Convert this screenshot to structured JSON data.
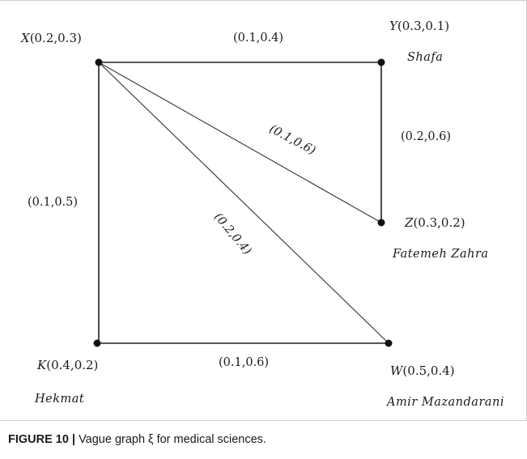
{
  "vertices": [
    {
      "id": "X",
      "name": "X",
      "value": "(0.2,0.3)",
      "place": ""
    },
    {
      "id": "Y",
      "name": "Y",
      "value": "(0.3,0.1)",
      "place": "Shafa"
    },
    {
      "id": "Z",
      "name": "Z",
      "value": "(0.3,0.2)",
      "place": "Fatemeh Zahra"
    },
    {
      "id": "K",
      "name": "K",
      "value": "(0.4,0.2)",
      "place": "Hekmat"
    },
    {
      "id": "W",
      "name": "W",
      "value": "(0.5,0.4)",
      "place": "Amir Mazandarani"
    }
  ],
  "edges": [
    {
      "from": "X",
      "to": "Y",
      "value": "(0.1,0.4)"
    },
    {
      "from": "Y",
      "to": "Z",
      "value": "(0.2,0.6)"
    },
    {
      "from": "X",
      "to": "Z",
      "value": "(0.1,0.6)"
    },
    {
      "from": "X",
      "to": "W",
      "value": "(0.2,0.4)"
    },
    {
      "from": "X",
      "to": "K",
      "value": "(0.1,0.5)"
    },
    {
      "from": "K",
      "to": "W",
      "value": "(0.1,0.6)"
    }
  ],
  "caption": {
    "label": "FIGURE 10 |",
    "text": "Vague graph ξ for medical sciences."
  }
}
